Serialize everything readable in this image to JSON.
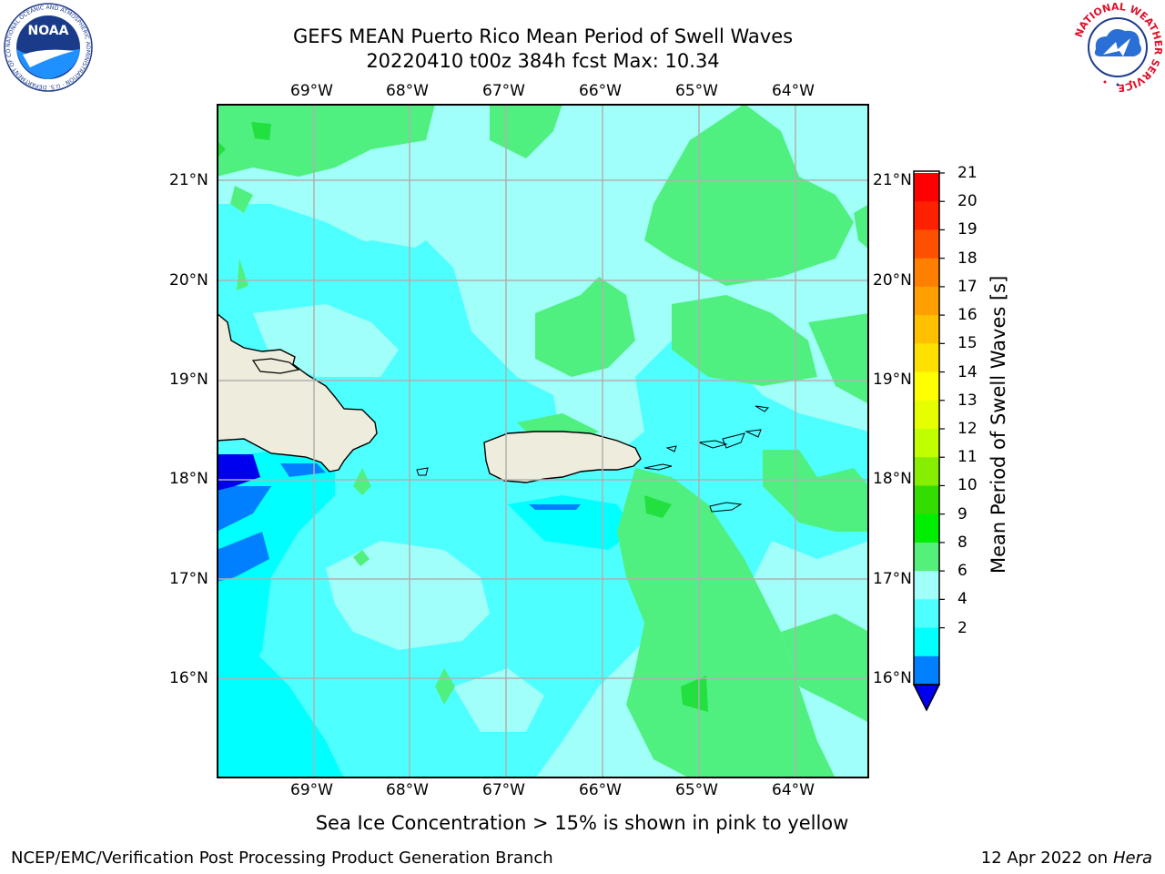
{
  "title": {
    "line1": "GEFS MEAN Puerto Rico Mean Period of Swell Waves",
    "line2": "20220410 t00z 384h fcst   Max: 10.34"
  },
  "map": {
    "lon_labels": [
      "69°W",
      "68°W",
      "67°W",
      "66°W",
      "65°W",
      "64°W"
    ],
    "lat_labels": [
      "21°N",
      "20°N",
      "19°N",
      "18°N",
      "17°N",
      "16°N"
    ],
    "colors": {
      "land": "#eeecdc",
      "level_4_6": "#00ffff",
      "level_6_8": "#4dffff",
      "level_8_9": "#a0fff8",
      "level_9_10": "#50f080",
      "level_10_11": "#22e040",
      "level_2_4": "#0080ff",
      "level_lt2": "#0000ff"
    }
  },
  "colorbar": {
    "label": "Mean Period of Swell Waves [s]",
    "ticks": [
      "21",
      "20",
      "19",
      "18",
      "17",
      "16",
      "15",
      "14",
      "13",
      "12",
      "11",
      "10",
      "9",
      "8",
      "6",
      "4",
      "2"
    ],
    "colors": [
      "#ff0000",
      "#ff2000",
      "#ff5000",
      "#ff8000",
      "#ffa000",
      "#ffc000",
      "#ffe000",
      "#ffff00",
      "#e6ff00",
      "#c0ff00",
      "#88ee00",
      "#33dd00",
      "#00ee00",
      "#55f07a",
      "#a0fff8",
      "#4dffff",
      "#00ffff",
      "#0080ff"
    ],
    "under_color": "#0000ee"
  },
  "footer": {
    "note": "Sea Ice Concentration > 15% is shown in pink to yellow",
    "credit": "NCEP/EMC/Verification Post Processing Product Generation Branch",
    "date": "12 Apr 2022 on ",
    "host": "Hera"
  },
  "logos": {
    "noaa": "NOAA",
    "noaa_ring": "NATIONAL OCEANIC AND ATMOSPHERIC ADMINISTRATION · U.S. DEPARTMENT OF COMMERCE ·",
    "nws_ring": "NATIONAL WEATHER SERVICE"
  }
}
